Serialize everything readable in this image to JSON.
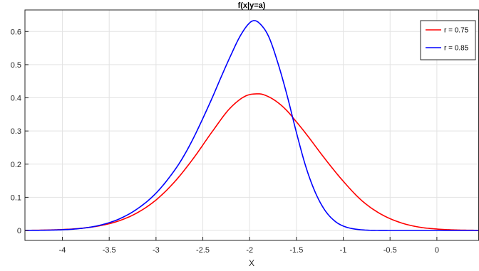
{
  "chart_data": {
    "type": "line",
    "title": "f(x|y=a)",
    "xlabel": "X",
    "ylabel": "",
    "xlim": [
      -4.4,
      0.45
    ],
    "ylim": [
      -0.03,
      0.665
    ],
    "xticks": [
      -4,
      -3.5,
      -3,
      -2.5,
      -2,
      -1.5,
      -1,
      -0.5,
      0
    ],
    "xtick_labels": [
      "-4",
      "-3.5",
      "-3",
      "-2.5",
      "-2",
      "-1.5",
      "-1",
      "-0.5",
      "0"
    ],
    "yticks": [
      0,
      0.1,
      0.2,
      0.3,
      0.4,
      0.5,
      0.6
    ],
    "ytick_labels": [
      "0",
      "0.1",
      "0.2",
      "0.3",
      "0.4",
      "0.5",
      "0.6"
    ],
    "grid": true,
    "legend_position": "top-right",
    "series": [
      {
        "name": "r = 0.75",
        "color": "#ff0000",
        "x": [
          -4.4,
          -4.2,
          -4.0,
          -3.8,
          -3.6,
          -3.4,
          -3.2,
          -3.0,
          -2.8,
          -2.6,
          -2.4,
          -2.2,
          -2.0,
          -1.9,
          -1.8,
          -1.7,
          -1.6,
          -1.5,
          -1.4,
          -1.2,
          -1.0,
          -0.8,
          -0.6,
          -0.4,
          -0.2,
          0.0,
          0.2,
          0.45
        ],
        "y": [
          0.0004,
          0.0011,
          0.0028,
          0.0066,
          0.0143,
          0.0286,
          0.0534,
          0.0919,
          0.1472,
          0.2177,
          0.2979,
          0.3714,
          0.4098,
          0.412,
          0.4036,
          0.3862,
          0.3607,
          0.3275,
          0.2925,
          0.2178,
          0.1485,
          0.0896,
          0.0497,
          0.0247,
          0.0106,
          0.0043,
          0.0015,
          0.0004
        ]
      },
      {
        "name": "r = 0.85",
        "color": "#0000ff",
        "x": [
          -4.4,
          -4.2,
          -4.0,
          -3.8,
          -3.6,
          -3.4,
          -3.2,
          -3.0,
          -2.8,
          -2.7,
          -2.6,
          -2.5,
          -2.4,
          -2.3,
          -2.2,
          -2.1,
          -2.0,
          -1.95,
          -1.9,
          -1.8,
          -1.7,
          -1.6,
          -1.5,
          -1.4,
          -1.3,
          -1.2,
          -1.1,
          -1.0,
          -0.8,
          -0.6,
          -0.4,
          -0.2,
          0.0,
          0.45
        ],
        "y": [
          0.0002,
          0.0007,
          0.0022,
          0.0062,
          0.0157,
          0.0339,
          0.0651,
          0.1125,
          0.1822,
          0.2263,
          0.2788,
          0.3378,
          0.3999,
          0.4657,
          0.5289,
          0.5869,
          0.6262,
          0.633,
          0.6262,
          0.5869,
          0.5067,
          0.4074,
          0.2952,
          0.1926,
          0.1157,
          0.0626,
          0.0306,
          0.0133,
          0.0019,
          0.0002,
          0.0,
          0.0,
          0.0,
          0.0
        ]
      }
    ]
  }
}
